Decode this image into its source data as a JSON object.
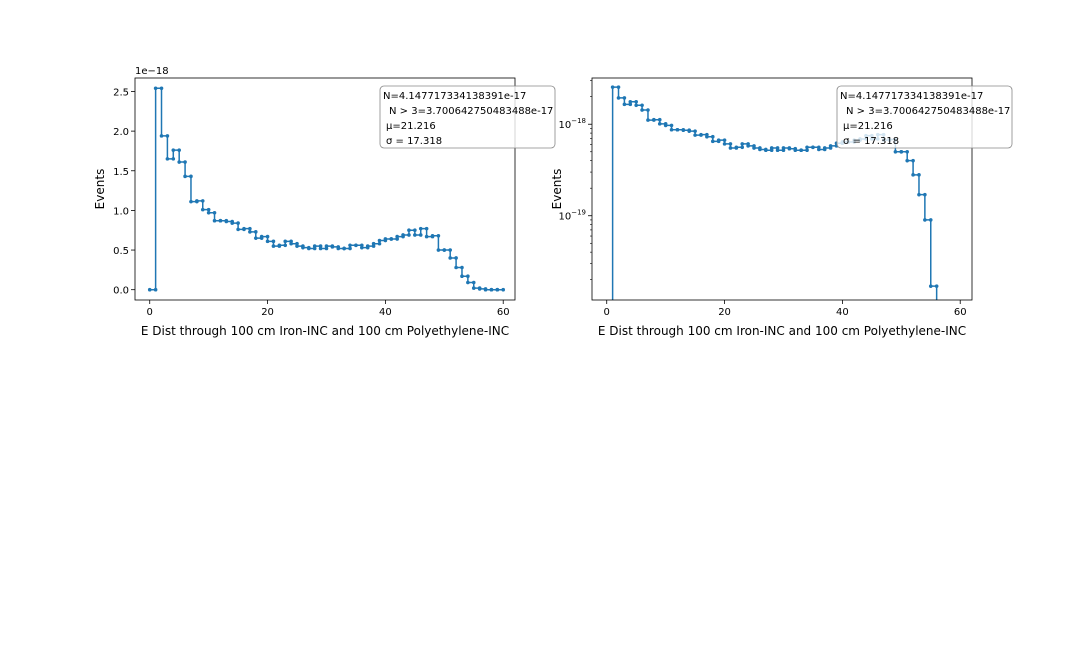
{
  "chart_data": [
    {
      "type": "line",
      "yscale": "linear",
      "xlabel": "E Dist through 100 cm Iron-INC and 100 cm Polyethylene-INC",
      "ylabel": "Events",
      "offset_label": "1e−18",
      "xlim": [
        -2.5,
        62
      ],
      "ylim": [
        -0.13,
        2.67
      ],
      "xticks": [
        "0",
        "20",
        "40",
        "60"
      ],
      "yticks": [
        "0.0",
        "0.5",
        "1.0",
        "1.5",
        "2.0",
        "2.5"
      ],
      "stats": [
        "N=4.147717334138391e-17",
        "N > 3=3.700642750483488e-17",
        "μ=21.216",
        "σ = 17.318"
      ],
      "grid": false,
      "legend": "top-right",
      "series": [
        {
          "x": [
            0.5,
            1.5,
            2.5,
            3.5,
            4.5,
            5.5,
            6.5,
            7.5,
            8.5,
            9.5,
            10.5,
            11.5,
            12.5,
            13.5,
            14.5,
            15.5,
            16.5,
            17.5,
            18.5,
            19.5,
            20.5,
            21.5,
            22.5,
            23.5,
            24.5,
            25.5,
            26.5,
            27.5,
            28.5,
            29.5,
            30.5,
            31.5,
            32.5,
            33.5,
            34.5,
            35.5,
            36.5,
            37.5,
            38.5,
            39.5,
            40.5,
            41.5,
            42.5,
            43.5,
            44.5,
            45.5,
            46.5,
            47.5,
            48.5,
            49.5,
            50.5,
            51.5,
            52.5,
            53.5,
            54.5,
            55.5,
            56.5,
            57.5,
            58.5,
            59.5
          ],
          "values": [
            0,
            2.54,
            1.94,
            1.65,
            1.76,
            1.61,
            1.43,
            1.11,
            1.12,
            1.01,
            0.97,
            0.87,
            0.87,
            0.86,
            0.84,
            0.76,
            0.77,
            0.73,
            0.65,
            0.67,
            0.61,
            0.55,
            0.56,
            0.61,
            0.58,
            0.55,
            0.53,
            0.52,
            0.55,
            0.52,
            0.55,
            0.54,
            0.52,
            0.52,
            0.56,
            0.56,
            0.53,
            0.55,
            0.58,
            0.62,
            0.64,
            0.64,
            0.67,
            0.69,
            0.75,
            0.69,
            0.77,
            0.67,
            0.68,
            0.5,
            0.5,
            0.4,
            0.28,
            0.17,
            0.09,
            0.02,
            0.01,
            0.0,
            0.0,
            0.0
          ]
        }
      ]
    },
    {
      "type": "line",
      "yscale": "log",
      "xlabel": "E Dist through 100 cm Iron-INC and 100 cm Polyethylene-INC",
      "ylabel": "Events",
      "xlim": [
        -2.5,
        62
      ],
      "ylim": [
        1.2e-20,
        3.2e-18
      ],
      "xticks": [
        "0",
        "20",
        "40",
        "60"
      ],
      "yticks": [
        {
          "base": "10",
          "exp": "−18",
          "value": 1e-18
        },
        {
          "base": "10",
          "exp": "−19",
          "value": 1e-19
        }
      ],
      "stats": [
        "N=4.147717334138391e-17",
        "N > 3=3.700642750483488e-17",
        "μ=21.216",
        "σ = 17.318"
      ],
      "grid": false,
      "legend": "top-right",
      "series": [
        {
          "x": [
            1.5,
            2.5,
            3.5,
            4.5,
            5.5,
            6.5,
            7.5,
            8.5,
            9.5,
            10.5,
            11.5,
            12.5,
            13.5,
            14.5,
            15.5,
            16.5,
            17.5,
            18.5,
            19.5,
            20.5,
            21.5,
            22.5,
            23.5,
            24.5,
            25.5,
            26.5,
            27.5,
            28.5,
            29.5,
            30.5,
            31.5,
            32.5,
            33.5,
            34.5,
            35.5,
            36.5,
            37.5,
            38.5,
            39.5,
            40.5,
            41.5,
            42.5,
            43.5,
            44.5,
            45.5,
            46.5,
            47.5,
            48.5,
            49.5,
            50.5,
            51.5,
            52.5,
            53.5,
            54.5,
            55.5
          ],
          "values": [
            2.54e-18,
            1.94e-18,
            1.65e-18,
            1.76e-18,
            1.61e-18,
            1.43e-18,
            1.11e-18,
            1.12e-18,
            1.01e-18,
            9.7e-19,
            8.7e-19,
            8.7e-19,
            8.6e-19,
            8.4e-19,
            7.6e-19,
            7.7e-19,
            7.3e-19,
            6.5e-19,
            6.7e-19,
            6.1e-19,
            5.5e-19,
            5.6e-19,
            6.1e-19,
            5.8e-19,
            5.5e-19,
            5.3e-19,
            5.2e-19,
            5.5e-19,
            5.2e-19,
            5.5e-19,
            5.4e-19,
            5.2e-19,
            5.2e-19,
            5.6e-19,
            5.6e-19,
            5.3e-19,
            5.5e-19,
            5.8e-19,
            6.2e-19,
            6.4e-19,
            6.4e-19,
            6.7e-19,
            6.9e-19,
            7.5e-19,
            6.9e-19,
            7.7e-19,
            6.7e-19,
            6.8e-19,
            5e-19,
            5e-19,
            4e-19,
            2.8e-19,
            1.7e-19,
            9e-20,
            1.7e-20
          ]
        }
      ]
    }
  ],
  "colors": {
    "series": "#1f77b4",
    "axes": "#000000",
    "legend_edge": "#888888"
  }
}
